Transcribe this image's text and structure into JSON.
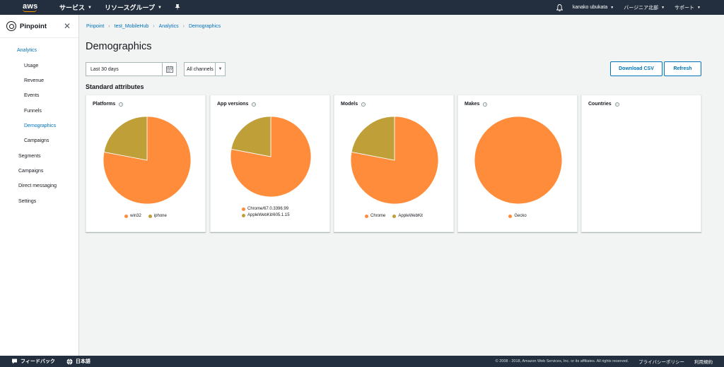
{
  "topnav": {
    "logo_text": "aws",
    "services_label": "サービス",
    "resource_groups_label": "リソースグループ",
    "user_label": "kanako ubukata",
    "region_label": "バージニア北部",
    "support_label": "サポート"
  },
  "sidebar": {
    "title": "Pinpoint",
    "items": [
      {
        "label": "Analytics"
      },
      {
        "label": "Usage"
      },
      {
        "label": "Revenue"
      },
      {
        "label": "Events"
      },
      {
        "label": "Funnels"
      },
      {
        "label": "Demographics"
      },
      {
        "label": "Campaigns"
      },
      {
        "label": "Segments"
      },
      {
        "label": "Campaigns"
      },
      {
        "label": "Direct messaging"
      },
      {
        "label": "Settings"
      }
    ]
  },
  "breadcrumb": [
    "Pinpoint",
    "test_MobileHub",
    "Analytics",
    "Demographics"
  ],
  "page_title": "Demographics",
  "filters": {
    "date_range": "Last 30 days",
    "channel": "All channels"
  },
  "buttons": {
    "download_csv": "Download CSV",
    "refresh": "Refresh"
  },
  "section_title": "Standard attributes",
  "colors": {
    "orange": "#ff8c3a",
    "olive": "#bf9f38",
    "link": "#0073bb",
    "nav_bg": "#232f3e"
  },
  "cards": [
    {
      "title": "Platforms",
      "legend": [
        "win32",
        "iphone"
      ]
    },
    {
      "title": "App versions",
      "legend": [
        "Chrome/67.0.3396.99",
        "AppleWebKit/605.1.15"
      ]
    },
    {
      "title": "Models",
      "legend": [
        "Chrome",
        "AppleWebKit"
      ]
    },
    {
      "title": "Makes",
      "legend": [
        "Gecko"
      ]
    },
    {
      "title": "Countries",
      "legend": []
    }
  ],
  "chart_data": [
    {
      "type": "pie",
      "categories": [
        "win32",
        "iphone"
      ],
      "values": [
        78,
        22
      ]
    },
    {
      "type": "pie",
      "categories": [
        "Chrome/67.0.3396.99",
        "AppleWebKit/605.1.15"
      ],
      "values": [
        78,
        22
      ]
    },
    {
      "type": "pie",
      "categories": [
        "Chrome",
        "AppleWebKit"
      ],
      "values": [
        78,
        22
      ]
    },
    {
      "type": "pie",
      "categories": [
        "Gecko"
      ],
      "values": [
        100
      ]
    }
  ],
  "footer": {
    "feedback_label": "フィードバック",
    "language_label": "日本語",
    "copyright": "© 2008 - 2018, Amazon Web Services, Inc. or its affiliates. All rights reserved.",
    "privacy_label": "プライバシーポリシー",
    "terms_label": "利用規約"
  }
}
